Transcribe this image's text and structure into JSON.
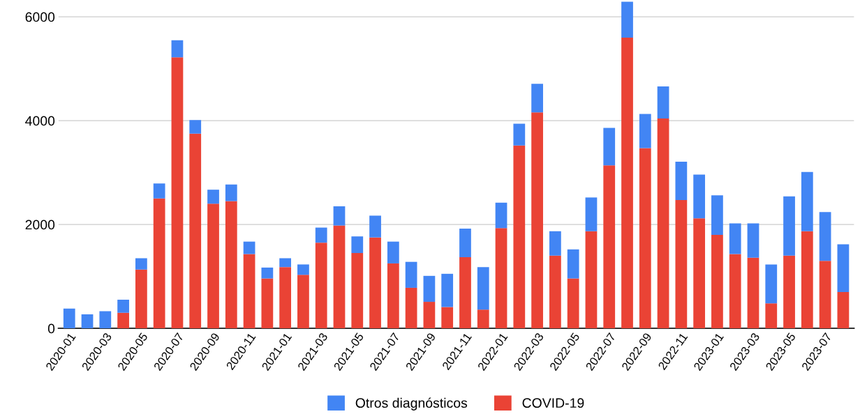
{
  "chart_data": {
    "type": "bar",
    "stacked": true,
    "categories": [
      "2020-01",
      null,
      "2020-03",
      null,
      "2020-05",
      null,
      "2020-07",
      null,
      "2020-09",
      null,
      "2020-11",
      null,
      "2021-01",
      null,
      "2021-03",
      null,
      "2021-05",
      null,
      "2021-07",
      null,
      "2021-09",
      null,
      "2021-11",
      null,
      "2022-01",
      null,
      "2022-03",
      null,
      "2022-05",
      null,
      "2022-07",
      null,
      "2022-09",
      null,
      "2022-11",
      null,
      "2023-01",
      null,
      "2023-03",
      null,
      "2023-05",
      null,
      "2023-07",
      null
    ],
    "series": [
      {
        "name": "COVID-19",
        "color": "#ea4335",
        "values": [
          0,
          0,
          0,
          300,
          1130,
          2500,
          5220,
          3750,
          2400,
          2450,
          1430,
          960,
          1180,
          1030,
          1650,
          1980,
          1450,
          1750,
          1250,
          780,
          510,
          410,
          1370,
          360,
          1930,
          3520,
          4160,
          1400,
          960,
          1870,
          3140,
          5600,
          3470,
          4040,
          2470,
          2120,
          1800,
          1430,
          1360,
          480,
          1400,
          1870,
          1300,
          700
        ]
      },
      {
        "name": "Otros diagnósticos",
        "color": "#4285f4",
        "values": [
          380,
          270,
          330,
          250,
          220,
          290,
          330,
          260,
          270,
          320,
          240,
          210,
          170,
          200,
          290,
          370,
          320,
          420,
          420,
          500,
          500,
          640,
          550,
          820,
          490,
          420,
          550,
          470,
          560,
          650,
          720,
          690,
          660,
          620,
          740,
          840,
          760,
          590,
          660,
          750,
          1140,
          1140,
          940,
          920
        ]
      }
    ],
    "ylim": [
      0,
      6300
    ],
    "yticks": [
      0,
      2000,
      4000,
      6000
    ],
    "grid": "y",
    "legend": "bottom"
  }
}
